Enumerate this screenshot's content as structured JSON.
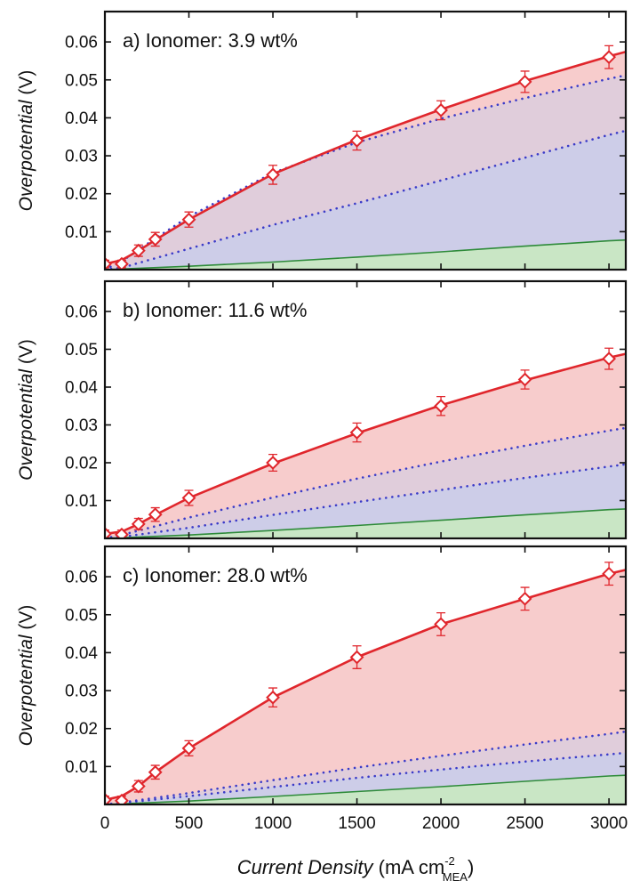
{
  "figure": {
    "xlabel_italic": "Current Density",
    "xlabel_unit_pre": " (mA cm",
    "xlabel_sup": "-2",
    "xlabel_sub": "MEA",
    "xlabel_unit_post": ")",
    "ylabel_italic": "Overpotential",
    "ylabel_unit": " (V)",
    "colors": {
      "measured": "#e0262c",
      "measured_fill": "#f7cccc",
      "dotted": "#3b3bc8",
      "mid_fill": "#cdcde8",
      "bottom": "#2e8b3a",
      "bottom_fill": "#c9e6c5"
    }
  },
  "chart_data": [
    {
      "type": "line",
      "title": "a) Ionomer: 3.9 wt%",
      "xlim": [
        0,
        3100
      ],
      "ylim": [
        0,
        0.068
      ],
      "x_ticks": [
        0,
        500,
        1000,
        1500,
        2000,
        2500,
        3000
      ],
      "y_ticks": [
        0.01,
        0.02,
        0.03,
        0.04,
        0.05,
        0.06
      ],
      "y_tick_labels": [
        "0.01",
        "0.02",
        "0.03",
        "0.04",
        "0.05",
        "0.06"
      ],
      "measured_points": {
        "x": [
          0,
          100,
          200,
          300,
          500,
          1000,
          1500,
          2000,
          2500,
          3000
        ],
        "y": [
          0.0015,
          0.0015,
          0.005,
          0.008,
          0.0132,
          0.025,
          0.034,
          0.042,
          0.0495,
          0.056
        ],
        "error": [
          0.001,
          0.001,
          0.0015,
          0.0018,
          0.002,
          0.0025,
          0.0025,
          0.0025,
          0.0028,
          0.003
        ]
      },
      "curves": {
        "measured": [
          [
            0,
            0.0015
          ],
          [
            100,
            0.0025
          ],
          [
            200,
            0.005
          ],
          [
            300,
            0.0078
          ],
          [
            500,
            0.0132
          ],
          [
            1000,
            0.0252
          ],
          [
            1500,
            0.0342
          ],
          [
            2000,
            0.0422
          ],
          [
            2500,
            0.0497
          ],
          [
            3000,
            0.0562
          ],
          [
            3100,
            0.0574
          ]
        ],
        "dotted_upper": [
          [
            0,
            0.0
          ],
          [
            100,
            0.0022
          ],
          [
            200,
            0.0052
          ],
          [
            300,
            0.0082
          ],
          [
            500,
            0.014
          ],
          [
            1000,
            0.0255
          ],
          [
            1500,
            0.0335
          ],
          [
            2000,
            0.0398
          ],
          [
            2500,
            0.0452
          ],
          [
            3000,
            0.0503
          ],
          [
            3100,
            0.0512
          ]
        ],
        "dotted_lower": [
          [
            0,
            0.0
          ],
          [
            100,
            0.0005
          ],
          [
            500,
            0.0055
          ],
          [
            1000,
            0.0118
          ],
          [
            1500,
            0.0175
          ],
          [
            2000,
            0.0235
          ],
          [
            2500,
            0.0295
          ],
          [
            3000,
            0.0355
          ],
          [
            3100,
            0.0366
          ]
        ],
        "bottom": [
          [
            0,
            0.0
          ],
          [
            500,
            0.0009
          ],
          [
            1000,
            0.002
          ],
          [
            1500,
            0.0033
          ],
          [
            2000,
            0.0047
          ],
          [
            2500,
            0.0062
          ],
          [
            3000,
            0.0076
          ],
          [
            3100,
            0.0078
          ]
        ]
      }
    },
    {
      "type": "line",
      "title": "b) Ionomer: 11.6 wt%",
      "xlim": [
        0,
        3100
      ],
      "ylim": [
        0,
        0.068
      ],
      "x_ticks": [
        0,
        500,
        1000,
        1500,
        2000,
        2500,
        3000
      ],
      "y_ticks": [
        0.01,
        0.02,
        0.03,
        0.04,
        0.05,
        0.06
      ],
      "y_tick_labels": [
        "0.01",
        "0.02",
        "0.03",
        "0.04",
        "0.05",
        "0.06"
      ],
      "measured_points": {
        "x": [
          0,
          100,
          200,
          300,
          500,
          1000,
          1500,
          2000,
          2500,
          3000
        ],
        "y": [
          0.0012,
          0.001,
          0.0038,
          0.0063,
          0.0107,
          0.02,
          0.028,
          0.035,
          0.042,
          0.0475
        ],
        "error": [
          0.001,
          0.0012,
          0.0015,
          0.0018,
          0.002,
          0.0022,
          0.0025,
          0.0025,
          0.0025,
          0.0028
        ]
      },
      "curves": {
        "measured": [
          [
            0,
            0.0012
          ],
          [
            100,
            0.0018
          ],
          [
            200,
            0.0038
          ],
          [
            300,
            0.0062
          ],
          [
            500,
            0.0107
          ],
          [
            1000,
            0.0198
          ],
          [
            1500,
            0.0278
          ],
          [
            2000,
            0.0352
          ],
          [
            2500,
            0.0418
          ],
          [
            3000,
            0.0478
          ],
          [
            3100,
            0.0488
          ]
        ],
        "dotted_upper": [
          [
            0,
            0.0
          ],
          [
            100,
            0.0009
          ],
          [
            500,
            0.0055
          ],
          [
            1000,
            0.0108
          ],
          [
            1500,
            0.0158
          ],
          [
            2000,
            0.0203
          ],
          [
            2500,
            0.0245
          ],
          [
            3000,
            0.0285
          ],
          [
            3100,
            0.0292
          ]
        ],
        "dotted_lower": [
          [
            0,
            0.0
          ],
          [
            100,
            0.0004
          ],
          [
            500,
            0.0028
          ],
          [
            1000,
            0.0062
          ],
          [
            1500,
            0.0096
          ],
          [
            2000,
            0.0128
          ],
          [
            2500,
            0.016
          ],
          [
            3000,
            0.019
          ],
          [
            3100,
            0.0196
          ]
        ],
        "bottom": [
          [
            0,
            0.0
          ],
          [
            500,
            0.0009
          ],
          [
            1000,
            0.0021
          ],
          [
            1500,
            0.0034
          ],
          [
            2000,
            0.0048
          ],
          [
            2500,
            0.0062
          ],
          [
            3000,
            0.0076
          ],
          [
            3100,
            0.0078
          ]
        ]
      }
    },
    {
      "type": "line",
      "title": "c) Ionomer: 28.0 wt%",
      "xlim": [
        0,
        3100
      ],
      "ylim": [
        0,
        0.068
      ],
      "x_ticks": [
        0,
        500,
        1000,
        1500,
        2000,
        2500,
        3000
      ],
      "x_tick_labels": [
        "0",
        "500",
        "1000",
        "1500",
        "2000",
        "2500",
        "3000"
      ],
      "y_ticks": [
        0.01,
        0.02,
        0.03,
        0.04,
        0.05,
        0.06
      ],
      "y_tick_labels": [
        "0.01",
        "0.02",
        "0.03",
        "0.04",
        "0.05",
        "0.06"
      ],
      "measured_points": {
        "x": [
          0,
          100,
          200,
          300,
          500,
          1000,
          1500,
          2000,
          2500,
          3000
        ],
        "y": [
          0.0012,
          0.001,
          0.0048,
          0.0085,
          0.0148,
          0.0282,
          0.0388,
          0.0475,
          0.0542,
          0.0608
        ],
        "error": [
          0.001,
          0.0012,
          0.0015,
          0.0018,
          0.002,
          0.0025,
          0.003,
          0.003,
          0.003,
          0.003
        ]
      },
      "curves": {
        "measured": [
          [
            0,
            0.0012
          ],
          [
            100,
            0.0022
          ],
          [
            200,
            0.0048
          ],
          [
            300,
            0.0085
          ],
          [
            500,
            0.0148
          ],
          [
            1000,
            0.0282
          ],
          [
            1500,
            0.0388
          ],
          [
            2000,
            0.0475
          ],
          [
            2500,
            0.0542
          ],
          [
            3000,
            0.0608
          ],
          [
            3100,
            0.0618
          ]
        ],
        "dotted_upper": [
          [
            0,
            0.0
          ],
          [
            100,
            0.0005
          ],
          [
            500,
            0.003
          ],
          [
            1000,
            0.0064
          ],
          [
            1500,
            0.0097
          ],
          [
            2000,
            0.0128
          ],
          [
            2500,
            0.0158
          ],
          [
            3000,
            0.0186
          ],
          [
            3100,
            0.0192
          ]
        ],
        "dotted_lower": [
          [
            0,
            0.0
          ],
          [
            100,
            0.0004
          ],
          [
            500,
            0.0022
          ],
          [
            1000,
            0.0046
          ],
          [
            1500,
            0.007
          ],
          [
            2000,
            0.0092
          ],
          [
            2500,
            0.0113
          ],
          [
            3000,
            0.0132
          ],
          [
            3100,
            0.0136
          ]
        ],
        "bottom": [
          [
            0,
            0.0
          ],
          [
            500,
            0.0009
          ],
          [
            1000,
            0.0021
          ],
          [
            1500,
            0.0034
          ],
          [
            2000,
            0.0047
          ],
          [
            2500,
            0.0061
          ],
          [
            3000,
            0.0075
          ],
          [
            3100,
            0.0077
          ]
        ]
      }
    }
  ]
}
